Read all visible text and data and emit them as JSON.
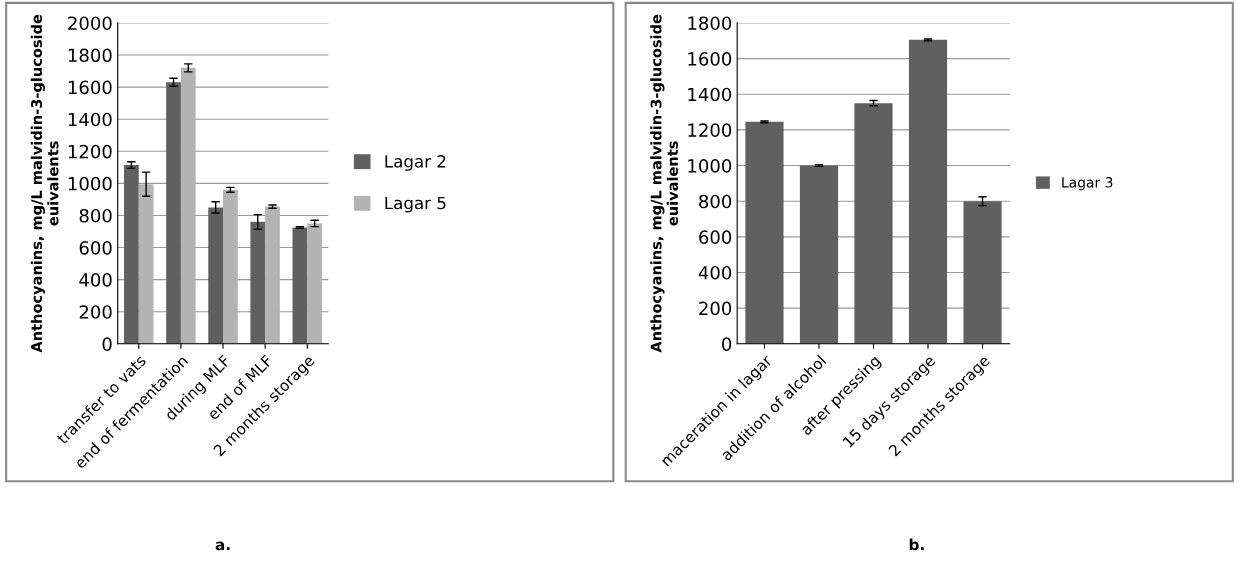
{
  "chart_data": [
    {
      "type": "bar",
      "title": "a.",
      "ylabel": "Anthocyanins, mg/L malvidin-3-glucoside euivalents",
      "categories": [
        "transfer to vats",
        "end of fermentation",
        "during MLF",
        "end of MLF",
        "2 months storage"
      ],
      "series": [
        {
          "name": "Lagar 2",
          "color": "#606060",
          "values": [
            1115,
            1630,
            850,
            760,
            725
          ],
          "errors": [
            20,
            25,
            35,
            45,
            5
          ]
        },
        {
          "name": "Lagar 5",
          "color": "#b3b3b3",
          "values": [
            995,
            1720,
            960,
            855,
            750
          ],
          "errors": [
            75,
            25,
            15,
            10,
            20
          ]
        }
      ],
      "ylim": [
        0,
        2000
      ],
      "yticks": [
        0,
        200,
        400,
        600,
        800,
        1000,
        1200,
        1400,
        1600,
        1800,
        2000
      ],
      "grid": "y",
      "legend": "right"
    },
    {
      "type": "bar",
      "title": "b.",
      "ylabel": "Anthocyanins, mg/L malvidin-3-glucoside euivalents",
      "categories": [
        "maceration in lagar",
        "addition of alcohol",
        "after pressing",
        "15 days storage",
        "2 months storage"
      ],
      "series": [
        {
          "name": "Lagar 3",
          "color": "#606060",
          "values": [
            1245,
            1000,
            1350,
            1705,
            800
          ],
          "errors": [
            5,
            5,
            15,
            5,
            25
          ]
        }
      ],
      "ylim": [
        0,
        1800
      ],
      "yticks": [
        0,
        200,
        400,
        600,
        800,
        1000,
        1200,
        1400,
        1600,
        1800
      ],
      "grid": "y",
      "legend": "right"
    }
  ]
}
